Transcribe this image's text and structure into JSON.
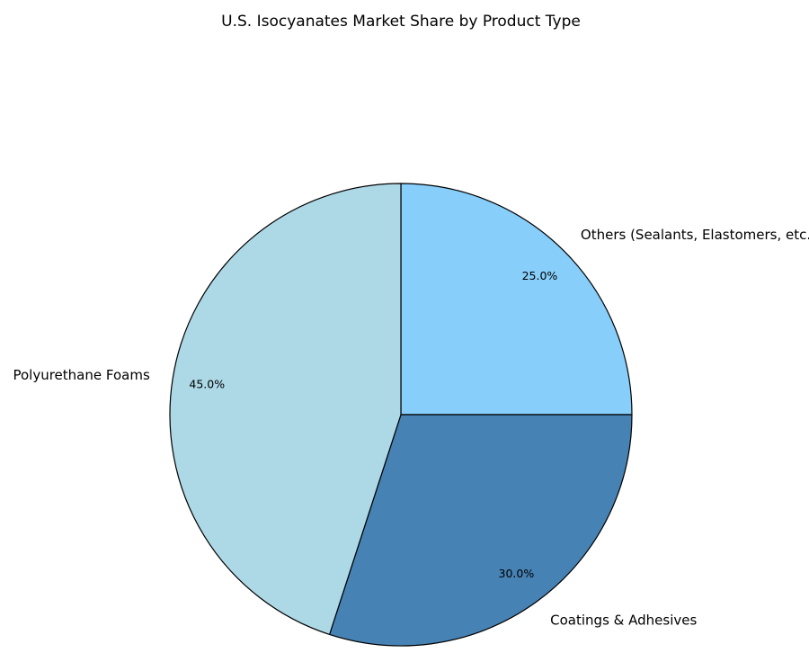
{
  "chart_data": {
    "type": "pie",
    "title": "U.S. Isocyanates Market Share by Product Type",
    "labels": [
      "Others (Sealants, Elastomers, etc.)",
      "Coatings & Adhesives",
      "Polyurethane Foams"
    ],
    "values": [
      25.0,
      30.0,
      45.0
    ],
    "percent_labels": [
      "25.0%",
      "30.0%",
      "45.0%"
    ],
    "colors": [
      "#87CEFA",
      "#4682B4",
      "#ADD8E6"
    ],
    "start_angle_deg": 90,
    "direction": "clockwise",
    "legend": "none",
    "edge_color": "#000000"
  }
}
